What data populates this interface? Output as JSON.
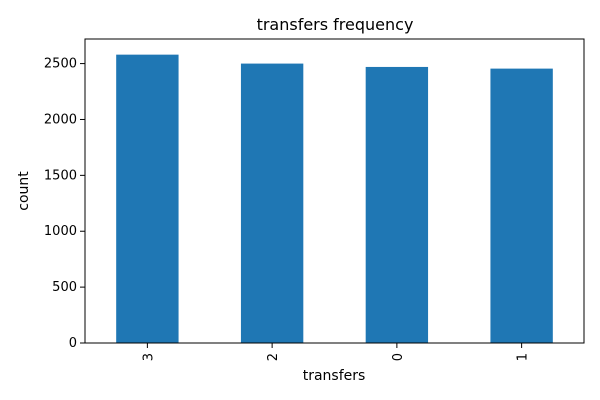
{
  "chart_data": {
    "type": "bar",
    "title": "transfers frequency",
    "xlabel": "transfers",
    "ylabel": "count",
    "categories": [
      "3",
      "2",
      "0",
      "1"
    ],
    "values": [
      2580,
      2500,
      2470,
      2455
    ],
    "ylim": [
      0,
      2720
    ],
    "yticks": [
      0,
      500,
      1000,
      1500,
      2000,
      2500
    ],
    "ytick_labels": [
      "0",
      "500",
      "1000",
      "1500",
      "2000",
      "2500"
    ],
    "xtick_rotation": 90,
    "grid": false,
    "legend": false,
    "colors": {
      "bar": "#1f77b4"
    }
  }
}
